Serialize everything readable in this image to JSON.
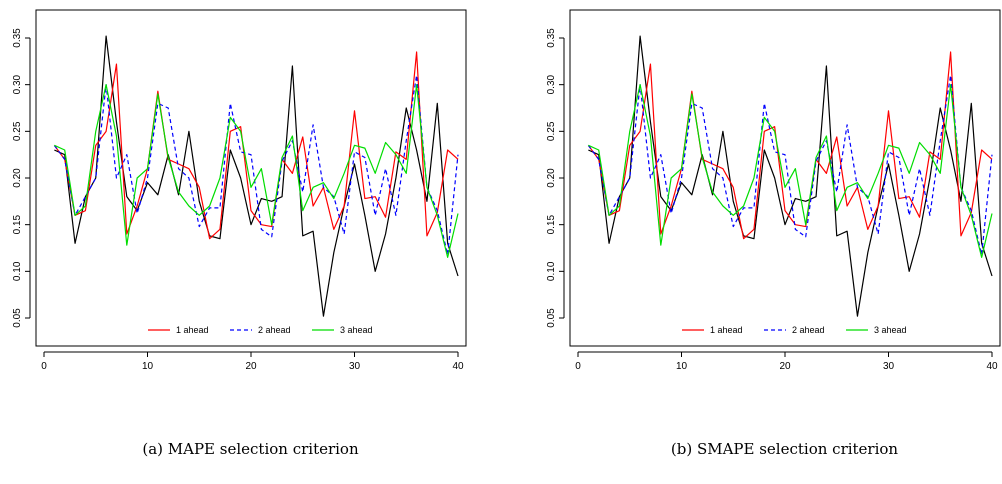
{
  "figure": {
    "panels": [
      {
        "caption": "(a) MAPE selection criterion"
      },
      {
        "caption": "(b) SMAPE selection criterion"
      }
    ]
  },
  "chart_data": [
    {
      "type": "line",
      "title": "",
      "xlabel": "",
      "ylabel": "",
      "xlim": [
        0,
        40
      ],
      "ylim": [
        0.02,
        0.38
      ],
      "xticks": [
        0,
        10,
        20,
        30,
        40
      ],
      "yticks": [
        0.05,
        0.1,
        0.15,
        0.2,
        0.25,
        0.3,
        0.35
      ],
      "ytick_labels": [
        "0.05",
        "0.10",
        "0.15",
        "0.20",
        "0.25",
        "0.30",
        "0.35"
      ],
      "grid": false,
      "legend_position": "bottom-center",
      "x": [
        1,
        2,
        3,
        4,
        5,
        6,
        7,
        8,
        9,
        10,
        11,
        12,
        13,
        14,
        15,
        16,
        17,
        18,
        19,
        20,
        21,
        22,
        23,
        24,
        25,
        26,
        27,
        28,
        29,
        30,
        31,
        32,
        33,
        34,
        35,
        36,
        37,
        38,
        39,
        40
      ],
      "series": [
        {
          "name": "",
          "color": "#000000",
          "dash": "solid",
          "values": [
            0.23,
            0.225,
            0.13,
            0.18,
            0.2,
            0.352,
            0.26,
            0.18,
            0.165,
            0.195,
            0.182,
            0.225,
            0.182,
            0.25,
            0.175,
            0.138,
            0.135,
            0.23,
            0.2,
            0.15,
            0.178,
            0.175,
            0.18,
            0.32,
            0.138,
            0.143,
            0.052,
            0.12,
            0.17,
            0.215,
            0.16,
            0.1,
            0.14,
            0.2,
            0.275,
            0.23,
            0.175,
            0.28,
            0.13,
            0.095
          ]
        },
        {
          "name": "1 ahead",
          "color": "#ff0000",
          "dash": "solid",
          "values": [
            0.235,
            0.22,
            0.16,
            0.165,
            0.235,
            0.25,
            0.322,
            0.14,
            0.17,
            0.21,
            0.293,
            0.22,
            0.215,
            0.21,
            0.19,
            0.135,
            0.145,
            0.25,
            0.255,
            0.165,
            0.15,
            0.148,
            0.22,
            0.205,
            0.244,
            0.17,
            0.19,
            0.145,
            0.17,
            0.272,
            0.178,
            0.18,
            0.158,
            0.228,
            0.22,
            0.335,
            0.138,
            0.163,
            0.23,
            0.22
          ]
        },
        {
          "name": "2 ahead",
          "color": "#0000ff",
          "dash": "dashed",
          "values": [
            0.235,
            0.22,
            0.16,
            0.18,
            0.2,
            0.3,
            0.2,
            0.225,
            0.162,
            0.2,
            0.28,
            0.275,
            0.21,
            0.2,
            0.148,
            0.168,
            0.168,
            0.28,
            0.228,
            0.225,
            0.145,
            0.137,
            0.218,
            0.24,
            0.185,
            0.257,
            0.19,
            0.18,
            0.14,
            0.228,
            0.222,
            0.16,
            0.21,
            0.16,
            0.24,
            0.31,
            0.19,
            0.165,
            0.118,
            0.225
          ]
        },
        {
          "name": "3 ahead",
          "color": "#00dd00",
          "dash": "solid",
          "values": [
            0.235,
            0.23,
            0.16,
            0.17,
            0.25,
            0.3,
            0.245,
            0.128,
            0.2,
            0.21,
            0.29,
            0.222,
            0.185,
            0.17,
            0.16,
            0.17,
            0.2,
            0.265,
            0.25,
            0.19,
            0.21,
            0.15,
            0.222,
            0.245,
            0.165,
            0.19,
            0.195,
            0.178,
            0.205,
            0.235,
            0.232,
            0.205,
            0.238,
            0.225,
            0.205,
            0.3,
            0.19,
            0.16,
            0.115,
            0.162
          ]
        }
      ]
    },
    {
      "type": "line",
      "title": "",
      "xlabel": "",
      "ylabel": "",
      "xlim": [
        0,
        40
      ],
      "ylim": [
        0.02,
        0.38
      ],
      "xticks": [
        0,
        10,
        20,
        30,
        40
      ],
      "yticks": [
        0.05,
        0.1,
        0.15,
        0.2,
        0.25,
        0.3,
        0.35
      ],
      "ytick_labels": [
        "0.05",
        "0.10",
        "0.15",
        "0.20",
        "0.25",
        "0.30",
        "0.35"
      ],
      "grid": false,
      "legend_position": "bottom-center",
      "x": [
        1,
        2,
        3,
        4,
        5,
        6,
        7,
        8,
        9,
        10,
        11,
        12,
        13,
        14,
        15,
        16,
        17,
        18,
        19,
        20,
        21,
        22,
        23,
        24,
        25,
        26,
        27,
        28,
        29,
        30,
        31,
        32,
        33,
        34,
        35,
        36,
        37,
        38,
        39,
        40
      ],
      "series": [
        {
          "name": "",
          "color": "#000000",
          "dash": "solid",
          "values": [
            0.23,
            0.225,
            0.13,
            0.18,
            0.2,
            0.352,
            0.26,
            0.18,
            0.165,
            0.195,
            0.182,
            0.225,
            0.182,
            0.25,
            0.175,
            0.138,
            0.135,
            0.23,
            0.2,
            0.15,
            0.178,
            0.175,
            0.18,
            0.32,
            0.138,
            0.143,
            0.052,
            0.12,
            0.17,
            0.215,
            0.16,
            0.1,
            0.14,
            0.2,
            0.275,
            0.23,
            0.175,
            0.28,
            0.13,
            0.095
          ]
        },
        {
          "name": "1 ahead",
          "color": "#ff0000",
          "dash": "solid",
          "values": [
            0.235,
            0.22,
            0.16,
            0.165,
            0.235,
            0.25,
            0.322,
            0.14,
            0.17,
            0.21,
            0.293,
            0.22,
            0.215,
            0.21,
            0.19,
            0.135,
            0.145,
            0.25,
            0.255,
            0.165,
            0.15,
            0.148,
            0.22,
            0.205,
            0.244,
            0.17,
            0.19,
            0.145,
            0.17,
            0.272,
            0.178,
            0.18,
            0.158,
            0.228,
            0.22,
            0.335,
            0.138,
            0.163,
            0.23,
            0.22
          ]
        },
        {
          "name": "2 ahead",
          "color": "#0000ff",
          "dash": "dashed",
          "values": [
            0.235,
            0.22,
            0.16,
            0.18,
            0.2,
            0.3,
            0.2,
            0.225,
            0.162,
            0.2,
            0.28,
            0.275,
            0.21,
            0.2,
            0.148,
            0.168,
            0.168,
            0.28,
            0.228,
            0.225,
            0.145,
            0.137,
            0.218,
            0.24,
            0.185,
            0.257,
            0.19,
            0.18,
            0.14,
            0.228,
            0.222,
            0.16,
            0.21,
            0.16,
            0.24,
            0.31,
            0.19,
            0.165,
            0.118,
            0.225
          ]
        },
        {
          "name": "3 ahead",
          "color": "#00dd00",
          "dash": "solid",
          "values": [
            0.235,
            0.23,
            0.16,
            0.17,
            0.25,
            0.3,
            0.245,
            0.128,
            0.2,
            0.21,
            0.29,
            0.222,
            0.185,
            0.17,
            0.16,
            0.17,
            0.2,
            0.265,
            0.25,
            0.19,
            0.21,
            0.15,
            0.222,
            0.245,
            0.165,
            0.19,
            0.195,
            0.178,
            0.205,
            0.235,
            0.232,
            0.205,
            0.238,
            0.225,
            0.205,
            0.3,
            0.19,
            0.16,
            0.115,
            0.162
          ]
        }
      ]
    }
  ]
}
